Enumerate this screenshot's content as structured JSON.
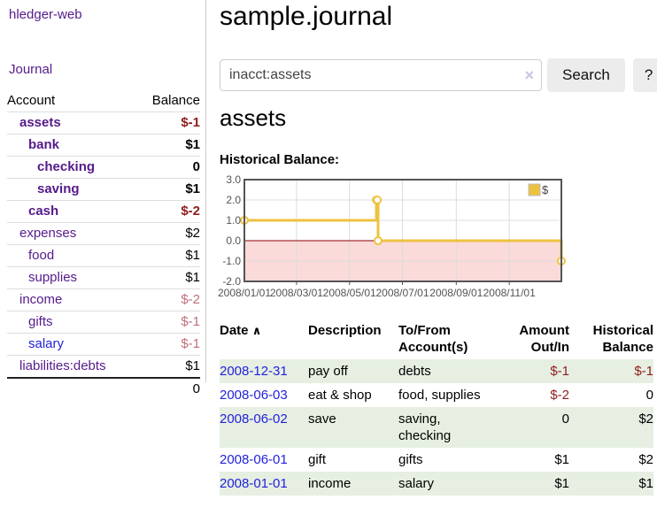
{
  "app_title": "hledger-web",
  "colors": {
    "link_purple": "#551a8b",
    "link_blue": "#2222dd",
    "negative": "#8f1d1d",
    "negative_muted": "#c0707a",
    "row_green": "#e6efe2",
    "chart_line": "#edc240",
    "chart_negative_fill": "#fbdada",
    "zero_line": "#8b0000"
  },
  "sidebar": {
    "journal_link": "Journal",
    "accounts": {
      "account_header": "Account",
      "balance_header": "Balance",
      "rows": [
        {
          "name": "assets",
          "balance": "$-1"
        },
        {
          "name": "bank",
          "balance": "$1"
        },
        {
          "name": "checking",
          "balance": "0"
        },
        {
          "name": "saving",
          "balance": "$1"
        },
        {
          "name": "cash",
          "balance": "$-2"
        },
        {
          "name": "expenses",
          "balance": "$2"
        },
        {
          "name": "food",
          "balance": "$1"
        },
        {
          "name": "supplies",
          "balance": "$1"
        },
        {
          "name": "income",
          "balance": "$-2"
        },
        {
          "name": "gifts",
          "balance": "$-1"
        },
        {
          "name": "salary",
          "balance": "$-1"
        },
        {
          "name": "liabilities:debts",
          "balance": "$1"
        }
      ],
      "total": "0"
    }
  },
  "main": {
    "title": "sample.journal",
    "account_heading": "assets",
    "chart_label": "Historical Balance:"
  },
  "search": {
    "value": "inacct:assets",
    "clear_icon": "×",
    "search_button": "Search",
    "help_button": "?"
  },
  "chart_data": {
    "type": "line",
    "title": "Historical Balance",
    "step": true,
    "legend": [
      {
        "label": "$",
        "color": "#edc240"
      }
    ],
    "legend_position": "top-right",
    "x_range": [
      "2008-01-01",
      "2008-12-31"
    ],
    "ylim": [
      -2,
      3
    ],
    "y_ticks": [
      "3.0",
      "2.0",
      "1.0",
      "0.0",
      "-1.0",
      "-2.0"
    ],
    "x_ticks": [
      "2008/01/01",
      "2008/03/01",
      "2008/05/01",
      "2008/07/01",
      "2008/09/01",
      "2008/11/01"
    ],
    "grid": true,
    "series": [
      {
        "name": "$",
        "points": [
          [
            "2008-01-01",
            1
          ],
          [
            "2008-06-01",
            2
          ],
          [
            "2008-06-02",
            2
          ],
          [
            "2008-06-03",
            0
          ],
          [
            "2008-12-31",
            -1
          ]
        ]
      }
    ]
  },
  "register": {
    "headers": {
      "date": "Date",
      "sort_indicator": "∧",
      "description": "Description",
      "accounts": "To/From Account(s)",
      "amount": "Amount Out/In",
      "balance": "Historical Balance"
    },
    "rows": [
      {
        "date": "2008-12-31",
        "description": "pay off",
        "accounts": "debts",
        "amount": "$-1",
        "balance": "$-1"
      },
      {
        "date": "2008-06-03",
        "description": "eat & shop",
        "accounts": "food, supplies",
        "amount": "$-2",
        "balance": "0"
      },
      {
        "date": "2008-06-02",
        "description": "save",
        "accounts": "saving, checking",
        "amount": "0",
        "balance": "$2"
      },
      {
        "date": "2008-06-01",
        "description": "gift",
        "accounts": "gifts",
        "amount": "$1",
        "balance": "$2"
      },
      {
        "date": "2008-01-01",
        "description": "income",
        "accounts": "salary",
        "amount": "$1",
        "balance": "$1"
      }
    ]
  }
}
